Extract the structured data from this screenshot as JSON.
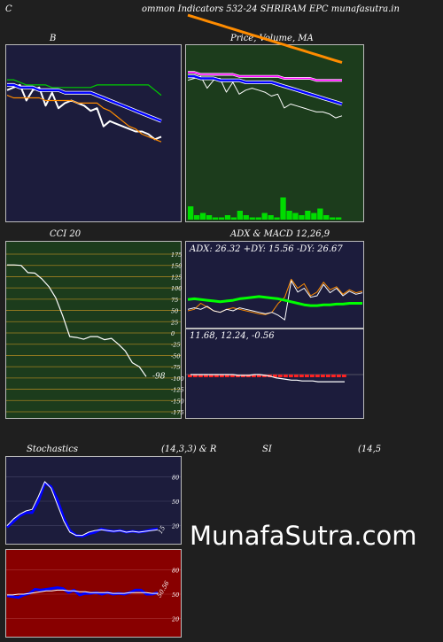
{
  "header": {
    "left": "C",
    "title": "ommon  Indicators 532-24 SHRIRAM EPC munafasutra.in"
  },
  "colors": {
    "background": "#1f1f1f",
    "navy_panel": "#1c1c3c",
    "green_panel": "#1c3c1c",
    "red_panel": "#880000",
    "price": "#ffffff",
    "ema_fast": "#0000ff",
    "ema_mid": "#ff8c00",
    "band_upper": "#00cc00",
    "adx_green": "#00ff00",
    "volume": "#00dd00"
  },
  "watermark": "MunafaSutra.com",
  "chart_data": [
    {
      "id": "bollinger",
      "type": "line",
      "title": "B",
      "x": [
        1,
        2,
        3,
        4,
        5,
        6,
        7,
        8,
        9,
        10,
        11,
        12,
        13,
        14,
        15,
        16,
        17,
        18,
        19,
        20,
        21,
        22,
        23,
        24,
        25
      ],
      "series": [
        {
          "key": "price",
          "values": [
            59,
            60,
            61,
            55,
            59,
            60,
            53,
            58,
            52,
            54,
            55,
            54,
            53,
            51,
            52,
            45,
            47,
            46,
            45,
            44,
            43,
            43,
            42,
            40,
            41
          ],
          "color": "#ffffff"
        },
        {
          "key": "upper",
          "values": [
            63,
            63,
            62,
            61,
            61,
            61,
            61,
            60,
            60,
            60,
            60,
            60,
            60,
            60,
            61,
            61,
            61,
            61,
            61,
            61,
            61,
            61,
            61,
            59,
            57
          ],
          "color": "#00cc00"
        },
        {
          "key": "mid",
          "values": [
            61,
            61,
            60,
            60,
            60,
            59,
            59,
            59,
            59,
            58,
            58,
            58,
            58,
            58,
            57,
            56,
            55,
            54,
            53,
            52,
            51,
            50,
            49,
            48,
            47
          ],
          "color": "#0000ff"
        },
        {
          "key": "lower",
          "values": [
            57,
            56,
            56,
            56,
            56,
            56,
            55,
            55,
            55,
            55,
            55,
            54,
            54,
            54,
            54,
            52,
            51,
            49,
            47,
            45,
            44,
            42,
            41,
            40,
            39
          ],
          "color": "#ff8c00"
        }
      ]
    },
    {
      "id": "price_ma",
      "type": "line",
      "title": "Price,  Volume,  MA",
      "x": [
        1,
        2,
        3,
        4,
        5,
        6,
        7,
        8,
        9,
        10,
        11,
        12,
        13,
        14,
        15,
        16,
        17,
        18,
        19,
        20,
        21,
        22,
        23,
        24,
        25
      ],
      "series": [
        {
          "key": "price",
          "values": [
            59,
            60,
            61,
            55,
            59,
            60,
            53,
            58,
            52,
            54,
            55,
            54,
            53,
            51,
            52,
            45,
            47,
            46,
            45,
            44,
            43,
            43,
            42,
            40,
            41
          ],
          "color": "#ffffff"
        },
        {
          "key": "ma_fast",
          "values": [
            61,
            61,
            60,
            60,
            60,
            59,
            59,
            59,
            59,
            58,
            58,
            58,
            58,
            58,
            57,
            56,
            55,
            54,
            53,
            52,
            51,
            50,
            49,
            48,
            47
          ],
          "color": "#0000ff"
        },
        {
          "key": "ma_slow",
          "values": [
            63,
            63,
            62,
            62,
            62,
            62,
            62,
            62,
            61,
            61,
            61,
            61,
            61,
            61,
            61,
            60,
            60,
            60,
            60,
            60,
            59,
            59,
            59,
            59,
            59
          ],
          "color": "#ff00ff"
        },
        {
          "key": "ma_long",
          "values": [
            92,
            91,
            90,
            89,
            88,
            87,
            86,
            85,
            84,
            83,
            82,
            81,
            80,
            79,
            78,
            77,
            76,
            75,
            74,
            73,
            72,
            71,
            70,
            69,
            68
          ],
          "color": "#ff8c00"
        }
      ],
      "volume": [
        6,
        2,
        3,
        2,
        1,
        1,
        2,
        1,
        4,
        2,
        1,
        1,
        3,
        2,
        1,
        10,
        4,
        3,
        2,
        4,
        3,
        5,
        2,
        1,
        1
      ]
    },
    {
      "id": "cci",
      "type": "line",
      "title": "CCI 20",
      "ylim": [
        -175,
        175
      ],
      "yticks": [
        175,
        150,
        125,
        100,
        75,
        50,
        25,
        0,
        -25,
        -50,
        -75,
        -100,
        -125,
        -150,
        -175
      ],
      "yticklabels": [
        "175",
        "150",
        "125",
        "100",
        "75",
        "50",
        "25",
        "0",
        "-25",
        "-50",
        "-75",
        "-100",
        "-125",
        "-150",
        "-175"
      ],
      "x": [
        1,
        2,
        3,
        4,
        5,
        6,
        7,
        8,
        9,
        10,
        11,
        12,
        13,
        14,
        15,
        16,
        17,
        18,
        19,
        20,
        21
      ],
      "series": [
        {
          "key": "cci",
          "values": [
            151,
            151,
            150,
            134,
            133,
            120,
            103,
            78,
            38,
            -8,
            -10,
            -14,
            -8,
            -8,
            -15,
            -12,
            -25,
            -40,
            -66,
            -75,
            -97
          ],
          "color": "#ffffff"
        }
      ],
      "last_label": "-98"
    },
    {
      "id": "adx",
      "type": "line",
      "title": "ADX  & MACD 12,26,9",
      "adx_label": "ADX: 26.32  +DY: 15.56  -DY: 26.67",
      "x": [
        1,
        2,
        3,
        4,
        5,
        6,
        7,
        8,
        9,
        10,
        11,
        12,
        13,
        14,
        15,
        16,
        17,
        18,
        19,
        20,
        21,
        22,
        23,
        24,
        25,
        26,
        27,
        28
      ],
      "series": [
        {
          "key": "adx",
          "values": [
            35,
            36,
            35,
            34,
            33,
            32,
            33,
            34,
            36,
            37,
            38,
            39,
            38,
            37,
            36,
            34,
            32,
            30,
            28,
            27,
            27,
            28,
            28,
            29,
            29,
            30,
            30,
            30
          ],
          "color": "#00ff00"
        },
        {
          "key": "plus_di",
          "values": [
            20,
            22,
            30,
            25,
            20,
            18,
            22,
            24,
            22,
            20,
            18,
            16,
            15,
            18,
            30,
            38,
            62,
            50,
            56,
            40,
            45,
            58,
            48,
            52,
            42,
            48,
            44,
            46
          ],
          "color": "#ff8c00"
        },
        {
          "key": "minus_di",
          "values": [
            22,
            24,
            22,
            26,
            20,
            18,
            22,
            20,
            24,
            22,
            20,
            18,
            16,
            18,
            14,
            8,
            60,
            45,
            50,
            38,
            40,
            55,
            44,
            50,
            40,
            46,
            42,
            44
          ],
          "color": "#ffffff"
        }
      ]
    },
    {
      "id": "macd",
      "type": "bar",
      "macd_label": "11.68,  12.24,  -0.56",
      "x": [
        1,
        2,
        3,
        4,
        5,
        6,
        7,
        8,
        9,
        10,
        11,
        12,
        13,
        14,
        15,
        16,
        17,
        18,
        19,
        20,
        21,
        22,
        23,
        24,
        25,
        26,
        27,
        28,
        29,
        30
      ],
      "series": [
        {
          "key": "hist",
          "values": [
            -2,
            -2,
            -2,
            -2,
            -2,
            -2,
            -2,
            -2,
            -2,
            -2,
            -2,
            -2,
            -2,
            -2,
            -2,
            -2,
            -2,
            -2,
            -2,
            -2,
            -2,
            -2,
            -2,
            -2,
            -2,
            -2,
            -2,
            -2,
            -2,
            -2
          ],
          "color": "#ff2222"
        },
        {
          "key": "macd",
          "values": [
            0,
            0,
            0,
            0,
            0,
            0,
            0,
            0,
            0,
            -1,
            -1,
            -1,
            0,
            0,
            -1,
            -2,
            -4,
            -5,
            -6,
            -7,
            -7,
            -8,
            -8,
            -8,
            -9,
            -9,
            -9,
            -9,
            -9,
            -9
          ],
          "color": "#ffffff"
        }
      ]
    },
    {
      "id": "stochastics",
      "type": "line",
      "title_left": "Stochastics",
      "title_params": "(14,3,3) & R",
      "ylim": [
        0,
        100
      ],
      "yticks": [
        80,
        50,
        20
      ],
      "yticklabels": [
        "80",
        "50",
        "20"
      ],
      "x": [
        1,
        2,
        3,
        4,
        5,
        6,
        7,
        8,
        9,
        10,
        11,
        12,
        13,
        14,
        15,
        16,
        17,
        18,
        19,
        20,
        21,
        22,
        23,
        24,
        25
      ],
      "series": [
        {
          "key": "k",
          "values": [
            18,
            25,
            32,
            36,
            36,
            50,
            72,
            68,
            52,
            30,
            14,
            8,
            7,
            10,
            12,
            16,
            14,
            13,
            14,
            12,
            13,
            12,
            13,
            15,
            16
          ],
          "color": "#0000ff"
        },
        {
          "key": "d",
          "values": [
            20,
            28,
            34,
            38,
            40,
            56,
            74,
            66,
            46,
            26,
            12,
            8,
            8,
            12,
            14,
            15,
            14,
            13,
            14,
            12,
            13,
            12,
            13,
            14,
            15
          ],
          "color": "#ffffff"
        }
      ],
      "last_label": "15"
    },
    {
      "id": "rsi",
      "type": "line",
      "title_left": "SI",
      "title_params": "(14,5",
      "ylim": [
        0,
        100
      ],
      "yticks": [
        80,
        50,
        20
      ],
      "yticklabels": [
        "80",
        "50",
        "20"
      ],
      "x": [
        1,
        2,
        3,
        4,
        5,
        6,
        7,
        8,
        9,
        10,
        11,
        12,
        13,
        14,
        15,
        16,
        17,
        18,
        19,
        20,
        21,
        22,
        23,
        24,
        25,
        26,
        27,
        28
      ],
      "series": [
        {
          "key": "rsi",
          "values": [
            48,
            47,
            46,
            49,
            51,
            56,
            55,
            56,
            57,
            58,
            57,
            52,
            55,
            49,
            51,
            51,
            52,
            50,
            52,
            50,
            51,
            50,
            52,
            55,
            55,
            50,
            50,
            52
          ],
          "color": "#0000ff"
        },
        {
          "key": "rsi_ma",
          "values": [
            49,
            49,
            50,
            50,
            51,
            52,
            53,
            54,
            54,
            55,
            55,
            54,
            54,
            53,
            53,
            52,
            52,
            52,
            52,
            51,
            51,
            51,
            52,
            52,
            52,
            52,
            51,
            51
          ],
          "color": "#ffffff"
        }
      ],
      "last_label": "50.56"
    }
  ]
}
